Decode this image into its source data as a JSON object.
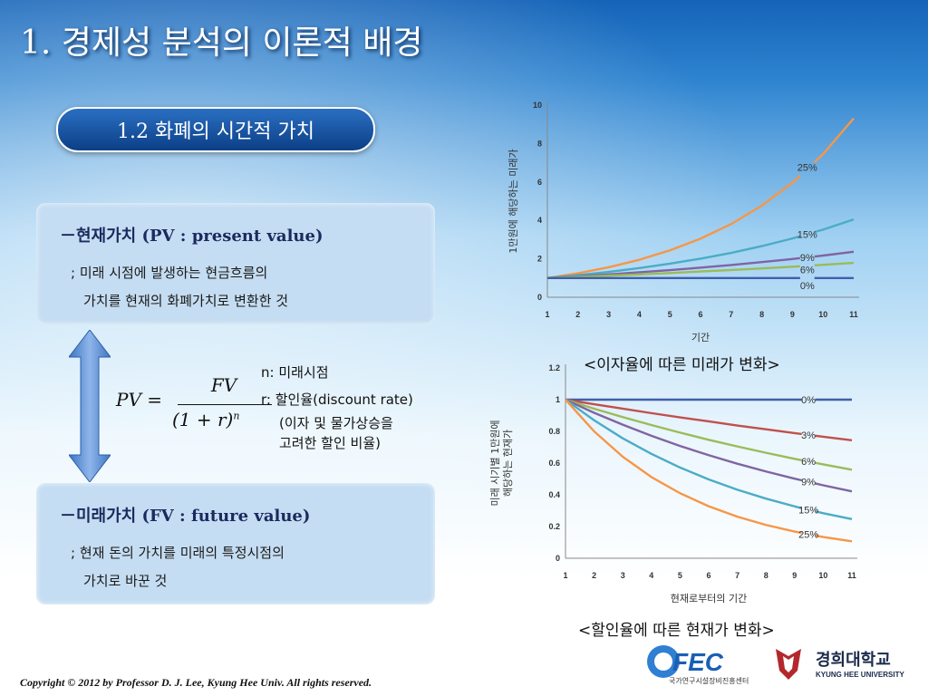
{
  "title": "1. 경제성 분석의 이론적 배경",
  "subtitle": "1.2 화폐의 시간적 가치",
  "pv_box": {
    "title": "－현재가치 (PV : present value)",
    "desc_line1": "; 미래 시점에 발생하는 현금흐름의",
    "desc_line2": "가치를 현재의 화폐가치로 변환한 것"
  },
  "fv_box": {
    "title": "－미래가치 (FV : future value)",
    "desc_line1": "; 현재 돈의 가치를 미래의 특정시점의",
    "desc_line2": "가치로 바꾼 것"
  },
  "formula": {
    "lhs": "PV =",
    "numerator": "FV",
    "denominator": "(1 + r)",
    "exponent": "n"
  },
  "variables": {
    "n": "n: 미래시점",
    "r": "r: 할인율(discount rate)",
    "r_note1": "(이자 및 물가상승을",
    "r_note2": "고려한 할인 비율)"
  },
  "colors": {
    "accent": "#1463b8",
    "box": "#c5ddf2",
    "arrow": "#5b8fd6",
    "s0": "#3f5fa8",
    "s3": "#c0504d",
    "s6": "#9bbb59",
    "s9": "#8064a2",
    "s15": "#4bacc6",
    "s25": "#f79646"
  },
  "chart_data": [
    {
      "type": "line",
      "x": [
        1,
        2,
        3,
        4,
        5,
        6,
        7,
        8,
        9,
        10,
        11
      ],
      "xticks": [
        "1",
        "2",
        "3",
        "4",
        "5",
        "6",
        "7",
        "8",
        "9",
        "10",
        "11"
      ],
      "yticks": [
        "0",
        "2",
        "4",
        "6",
        "8",
        "10"
      ],
      "xlabel": "기간",
      "ylabel": "1만원에 해당하는 미래가",
      "ylim": [
        0,
        10
      ],
      "series": [
        {
          "name": "25%",
          "values": [
            1.0,
            1.25,
            1.56,
            1.95,
            2.44,
            3.05,
            3.81,
            4.77,
            5.96,
            7.45,
            9.31
          ]
        },
        {
          "name": "15%",
          "values": [
            1.0,
            1.15,
            1.32,
            1.52,
            1.75,
            2.01,
            2.31,
            2.66,
            3.06,
            3.52,
            4.05
          ]
        },
        {
          "name": "9%",
          "values": [
            1.0,
            1.09,
            1.19,
            1.3,
            1.41,
            1.54,
            1.68,
            1.83,
            1.99,
            2.17,
            2.37
          ]
        },
        {
          "name": "6%",
          "values": [
            1.0,
            1.06,
            1.12,
            1.19,
            1.26,
            1.34,
            1.42,
            1.5,
            1.59,
            1.69,
            1.79
          ]
        },
        {
          "name": "0%",
          "values": [
            1.0,
            1.0,
            1.0,
            1.0,
            1.0,
            1.0,
            1.0,
            1.0,
            1.0,
            1.0,
            1.0
          ]
        }
      ],
      "caption": "<이자율에 따른 미래가 변화>"
    },
    {
      "type": "line",
      "x": [
        1,
        2,
        3,
        4,
        5,
        6,
        7,
        8,
        9,
        10,
        11
      ],
      "xticks": [
        "1",
        "2",
        "3",
        "4",
        "5",
        "6",
        "7",
        "8",
        "9",
        "10",
        "11"
      ],
      "yticks": [
        "0",
        "0.2",
        "0.4",
        "0.6",
        "0.8",
        "1",
        "1.2"
      ],
      "xlabel": "현재로부터의 기간",
      "ylabel_line1": "미래 시기별 1만원에",
      "ylabel_line2": "해당하는 현재가",
      "ylim": [
        0,
        1.2
      ],
      "series": [
        {
          "name": "0%",
          "values": [
            1.0,
            1.0,
            1.0,
            1.0,
            1.0,
            1.0,
            1.0,
            1.0,
            1.0,
            1.0,
            1.0
          ]
        },
        {
          "name": "3%",
          "values": [
            1.0,
            0.971,
            0.943,
            0.915,
            0.888,
            0.863,
            0.837,
            0.813,
            0.789,
            0.766,
            0.744
          ]
        },
        {
          "name": "6%",
          "values": [
            1.0,
            0.943,
            0.89,
            0.84,
            0.792,
            0.747,
            0.705,
            0.665,
            0.627,
            0.592,
            0.558
          ]
        },
        {
          "name": "9%",
          "values": [
            1.0,
            0.917,
            0.842,
            0.772,
            0.708,
            0.65,
            0.596,
            0.547,
            0.502,
            0.46,
            0.422
          ]
        },
        {
          "name": "15%",
          "values": [
            1.0,
            0.87,
            0.756,
            0.658,
            0.572,
            0.497,
            0.432,
            0.376,
            0.327,
            0.284,
            0.247
          ]
        },
        {
          "name": "25%",
          "values": [
            1.0,
            0.8,
            0.64,
            0.512,
            0.41,
            0.328,
            0.262,
            0.21,
            0.168,
            0.134,
            0.107
          ]
        }
      ],
      "caption": "<할인율에 따른 현재가 변화>"
    }
  ],
  "footer": "Copyright © 2012 by Professor D. J.  Lee, Kyung Hee Univ. All rights reserved.",
  "logos": {
    "fec": "FEC",
    "fec_sub": "국가연구시설장비진흥센터",
    "khu_name": "경희대학교",
    "khu_eng": "KYUNG HEE UNIVERSITY"
  }
}
